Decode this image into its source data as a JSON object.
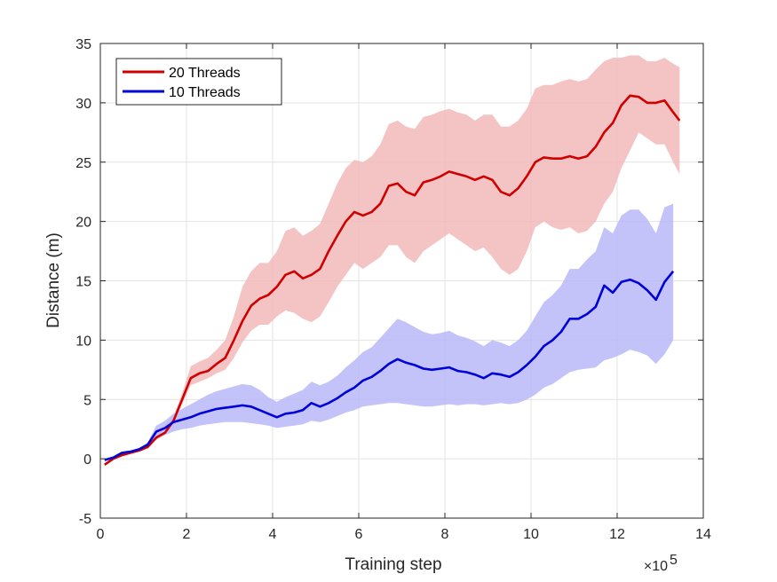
{
  "chart_data": {
    "type": "line",
    "title": "",
    "xlabel": "Training step",
    "ylabel": "Distance (m)",
    "x_exponent_label": "×10",
    "x_exponent": "5",
    "xlim": [
      0,
      14
    ],
    "ylim": [
      -5,
      35
    ],
    "xticks": [
      0,
      2,
      4,
      6,
      8,
      10,
      12,
      14
    ],
    "yticks": [
      -5,
      0,
      5,
      10,
      15,
      20,
      25,
      30,
      35
    ],
    "grid": true,
    "legend_position": "top-left",
    "series": [
      {
        "name": "20 Threads",
        "color": "#d00000",
        "band_color": "#f2b8b8",
        "x": [
          0.1,
          0.3,
          0.5,
          0.7,
          0.9,
          1.1,
          1.3,
          1.5,
          1.7,
          1.9,
          2.1,
          2.3,
          2.5,
          2.7,
          2.9,
          3.1,
          3.3,
          3.5,
          3.7,
          3.9,
          4.1,
          4.3,
          4.5,
          4.7,
          4.9,
          5.1,
          5.3,
          5.5,
          5.7,
          5.9,
          6.1,
          6.3,
          6.5,
          6.7,
          6.9,
          7.1,
          7.3,
          7.5,
          7.7,
          7.9,
          8.1,
          8.3,
          8.5,
          8.7,
          8.9,
          9.1,
          9.3,
          9.5,
          9.7,
          9.9,
          10.1,
          10.3,
          10.5,
          10.7,
          10.9,
          11.1,
          11.3,
          11.5,
          11.7,
          11.9,
          12.1,
          12.3,
          12.5,
          12.7,
          12.9,
          13.1,
          13.3,
          13.45
        ],
        "y": [
          -0.5,
          0.0,
          0.3,
          0.5,
          0.7,
          1.0,
          1.8,
          2.2,
          3.2,
          5.0,
          6.8,
          7.2,
          7.4,
          8.0,
          8.5,
          10.0,
          11.6,
          12.9,
          13.5,
          13.8,
          14.5,
          15.5,
          15.8,
          15.2,
          15.5,
          16.0,
          17.5,
          18.8,
          20.0,
          20.8,
          20.5,
          20.8,
          21.5,
          23.0,
          23.2,
          22.5,
          22.2,
          23.3,
          23.5,
          23.8,
          24.2,
          24.0,
          23.8,
          23.5,
          23.8,
          23.5,
          22.5,
          22.2,
          22.8,
          23.8,
          25.0,
          25.4,
          25.3,
          25.3,
          25.5,
          25.3,
          25.5,
          26.3,
          27.5,
          28.3,
          29.8,
          30.6,
          30.5,
          30.0,
          30.0,
          30.2,
          29.2,
          28.5
        ],
        "lower": [
          -0.5,
          0.0,
          0.3,
          0.5,
          0.7,
          1.0,
          1.6,
          2.0,
          3.0,
          4.6,
          6.2,
          6.5,
          6.8,
          7.2,
          7.5,
          8.5,
          9.8,
          10.8,
          11.3,
          11.3,
          12.0,
          12.5,
          12.3,
          11.8,
          11.5,
          12.0,
          13.2,
          14.5,
          15.5,
          16.5,
          16.0,
          16.5,
          17.0,
          18.0,
          18.0,
          17.0,
          16.5,
          17.5,
          18.0,
          18.5,
          19.0,
          18.5,
          18.0,
          17.5,
          17.8,
          17.0,
          16.0,
          15.5,
          16.0,
          17.5,
          19.5,
          20.0,
          19.5,
          19.3,
          19.5,
          19.0,
          19.2,
          20.0,
          21.5,
          22.5,
          24.5,
          26.0,
          27.5,
          27.0,
          26.5,
          26.5,
          25.0,
          24.0
        ],
        "upper": [
          -0.5,
          0.0,
          0.4,
          0.6,
          0.8,
          1.1,
          2.0,
          2.6,
          3.6,
          5.5,
          7.8,
          8.2,
          8.5,
          9.2,
          10.0,
          12.0,
          14.5,
          15.8,
          16.5,
          16.5,
          17.5,
          19.2,
          19.5,
          18.8,
          19.2,
          19.8,
          21.5,
          23.2,
          24.5,
          25.2,
          25.0,
          25.5,
          26.5,
          28.2,
          28.5,
          28.0,
          27.8,
          28.8,
          29.0,
          29.3,
          29.5,
          29.2,
          29.0,
          28.5,
          29.0,
          29.0,
          28.0,
          28.0,
          28.5,
          29.5,
          31.2,
          31.5,
          31.5,
          31.8,
          32.0,
          31.8,
          32.0,
          32.8,
          33.5,
          33.8,
          33.8,
          34.0,
          34.0,
          33.5,
          33.5,
          33.8,
          33.3,
          33.0
        ]
      },
      {
        "name": "10 Threads",
        "color": "#0000d8",
        "band_color": "#b8b8f8",
        "x": [
          0.1,
          0.3,
          0.5,
          0.7,
          0.9,
          1.1,
          1.3,
          1.5,
          1.7,
          1.9,
          2.1,
          2.3,
          2.5,
          2.7,
          2.9,
          3.1,
          3.3,
          3.5,
          3.7,
          3.9,
          4.1,
          4.3,
          4.5,
          4.7,
          4.9,
          5.1,
          5.3,
          5.5,
          5.7,
          5.9,
          6.1,
          6.3,
          6.5,
          6.7,
          6.9,
          7.1,
          7.3,
          7.5,
          7.7,
          7.9,
          8.1,
          8.3,
          8.5,
          8.7,
          8.9,
          9.1,
          9.3,
          9.5,
          9.7,
          9.9,
          10.1,
          10.3,
          10.5,
          10.7,
          10.9,
          11.1,
          11.3,
          11.5,
          11.7,
          11.9,
          12.1,
          12.3,
          12.5,
          12.7,
          12.9,
          13.1,
          13.3
        ],
        "y": [
          -0.1,
          0.1,
          0.5,
          0.6,
          0.8,
          1.2,
          2.3,
          2.6,
          3.1,
          3.3,
          3.5,
          3.8,
          4.0,
          4.2,
          4.3,
          4.4,
          4.5,
          4.4,
          4.1,
          3.8,
          3.5,
          3.8,
          3.9,
          4.1,
          4.7,
          4.4,
          4.7,
          5.1,
          5.6,
          6.0,
          6.6,
          6.9,
          7.4,
          8.0,
          8.4,
          8.1,
          7.9,
          7.6,
          7.5,
          7.6,
          7.7,
          7.4,
          7.3,
          7.1,
          6.8,
          7.2,
          7.1,
          6.9,
          7.3,
          7.9,
          8.6,
          9.5,
          10.0,
          10.7,
          11.8,
          11.8,
          12.2,
          12.8,
          14.6,
          14.0,
          14.9,
          15.1,
          14.8,
          14.2,
          13.4,
          14.9,
          15.8
        ],
        "lower": [
          -0.1,
          0.1,
          0.4,
          0.5,
          0.7,
          1.0,
          1.8,
          2.0,
          2.3,
          2.5,
          2.6,
          2.8,
          2.9,
          3.0,
          3.1,
          3.1,
          3.1,
          3.0,
          2.9,
          2.8,
          2.6,
          2.7,
          2.8,
          2.9,
          3.2,
          3.1,
          3.3,
          3.6,
          3.9,
          4.1,
          4.4,
          4.5,
          4.6,
          4.7,
          4.7,
          4.6,
          4.5,
          4.4,
          4.4,
          4.5,
          4.6,
          4.5,
          4.6,
          4.6,
          4.5,
          4.6,
          4.7,
          4.6,
          4.7,
          5.0,
          5.4,
          6.0,
          6.3,
          6.8,
          7.3,
          7.5,
          7.6,
          7.7,
          8.3,
          8.5,
          8.8,
          9.2,
          9.0,
          8.7,
          8.0,
          8.8,
          10.0
        ],
        "upper": [
          0.0,
          0.2,
          0.6,
          0.7,
          0.9,
          1.4,
          2.8,
          3.2,
          3.8,
          4.2,
          4.6,
          5.0,
          5.4,
          5.7,
          5.9,
          6.1,
          6.3,
          6.2,
          5.8,
          5.2,
          4.8,
          5.2,
          5.5,
          5.8,
          6.5,
          6.2,
          6.5,
          7.0,
          7.7,
          8.3,
          9.0,
          9.4,
          10.2,
          11.0,
          11.8,
          11.5,
          11.1,
          10.7,
          10.5,
          10.6,
          10.8,
          10.4,
          10.2,
          9.9,
          9.5,
          10.0,
          9.8,
          9.5,
          10.0,
          10.8,
          12.0,
          13.2,
          13.8,
          14.6,
          16.0,
          16.0,
          16.8,
          17.5,
          19.5,
          19.0,
          20.5,
          21.0,
          21.0,
          20.2,
          19.0,
          21.2,
          21.5
        ]
      }
    ]
  }
}
